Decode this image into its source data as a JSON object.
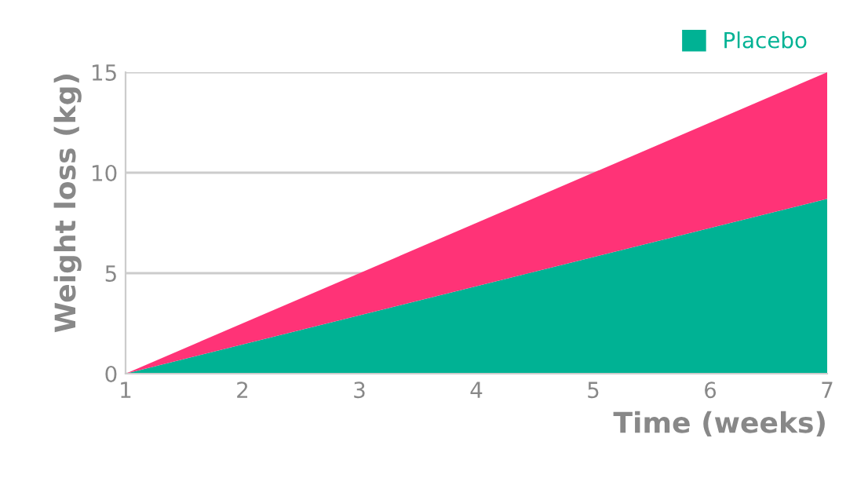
{
  "chart_data": {
    "type": "area",
    "stacked": true,
    "xlabel": "Time (weeks)",
    "ylabel": "Weight loss (kg)",
    "x": [
      1,
      7
    ],
    "xlim": [
      1,
      7
    ],
    "xticks": [
      1,
      2,
      3,
      4,
      5,
      6,
      7
    ],
    "ylim": [
      0,
      15
    ],
    "yticks": [
      0,
      5,
      10,
      15
    ],
    "grid": "y",
    "legend": "top right",
    "series": [
      {
        "name": "Placebo",
        "color": "#00b294",
        "values": [
          0,
          8.7
        ]
      },
      {
        "color": "#ff3377",
        "values": [
          0,
          6.3
        ]
      }
    ]
  }
}
